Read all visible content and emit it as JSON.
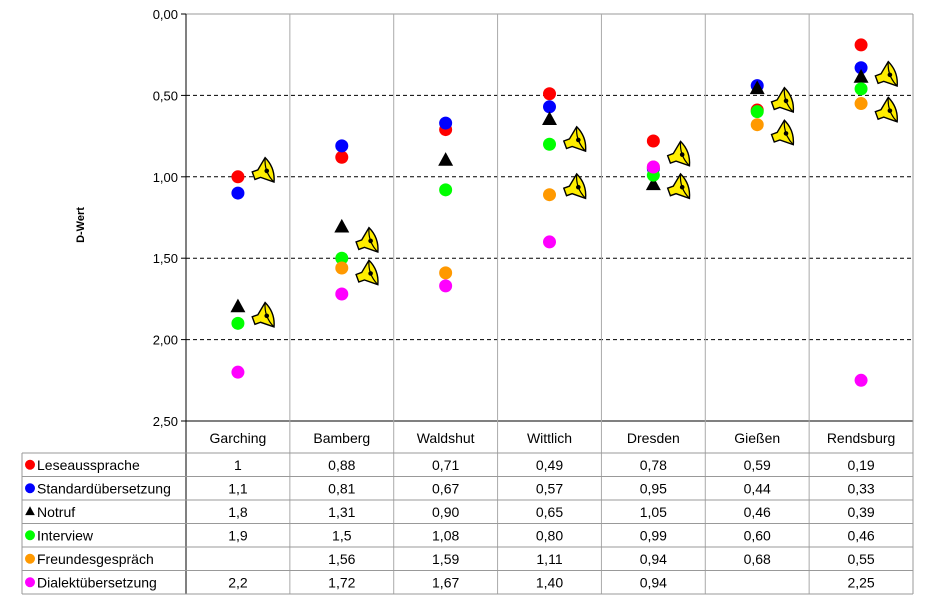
{
  "chart_data": {
    "type": "scatter",
    "ylabel": "D-Wert",
    "ylim": [
      2.5,
      0
    ],
    "yticks": [
      "0,00",
      "0,50",
      "1,00",
      "1,50",
      "2,00",
      "2,50"
    ],
    "ytick_values": [
      0,
      0.5,
      1,
      1.5,
      2,
      2.5
    ],
    "grid": "horizontal dashed",
    "categories": [
      "Garching",
      "Bamberg",
      "Waldshut",
      "Wittlich",
      "Dresden",
      "Gießen",
      "Rendsburg"
    ],
    "series": [
      {
        "name": "Leseaussprache",
        "marker": "circle",
        "color": "#ff0000",
        "values": [
          1,
          0.88,
          0.71,
          0.49,
          0.78,
          0.59,
          0.19
        ],
        "labels": [
          "1",
          "0,88",
          "0,71",
          "0,49",
          "0,78",
          "0,59",
          "0,19"
        ]
      },
      {
        "name": "Standardübersetzung",
        "marker": "circle",
        "color": "#0000ff",
        "values": [
          1.1,
          0.81,
          0.67,
          0.57,
          0.95,
          0.44,
          0.33
        ],
        "labels": [
          "1,1",
          "0,81",
          "0,67",
          "0,57",
          "0,95",
          "0,44",
          "0,33"
        ]
      },
      {
        "name": "Notruf",
        "marker": "triangle",
        "color": "#000000",
        "values": [
          1.8,
          1.31,
          0.9,
          0.65,
          1.05,
          0.46,
          0.39
        ],
        "labels": [
          "1,8",
          "1,31",
          "0,90",
          "0,65",
          "1,05",
          "0,46",
          "0,39"
        ]
      },
      {
        "name": "Interview",
        "marker": "circle",
        "color": "#00ff00",
        "values": [
          1.9,
          1.5,
          1.08,
          0.8,
          0.99,
          0.6,
          0.46
        ],
        "labels": [
          "1,9",
          "1,5",
          "1,08",
          "0,80",
          "0,99",
          "0,60",
          "0,46"
        ]
      },
      {
        "name": "Freundesgespräch",
        "marker": "circle",
        "color": "#ff9900",
        "values": [
          null,
          1.56,
          1.59,
          1.11,
          0.94,
          0.68,
          0.55
        ],
        "labels": [
          "",
          "1,56",
          "1,59",
          "1,11",
          "0,94",
          "0,68",
          "0,55"
        ]
      },
      {
        "name": "Dialektübersetzung",
        "marker": "circle",
        "color": "#ff00ff",
        "values": [
          2.2,
          1.72,
          1.67,
          1.4,
          0.94,
          null,
          2.25
        ],
        "labels": [
          "2,2",
          "1,72",
          "1,67",
          "1,40",
          "0,94",
          "",
          "2,25"
        ]
      }
    ],
    "legend": "data table below chart"
  }
}
